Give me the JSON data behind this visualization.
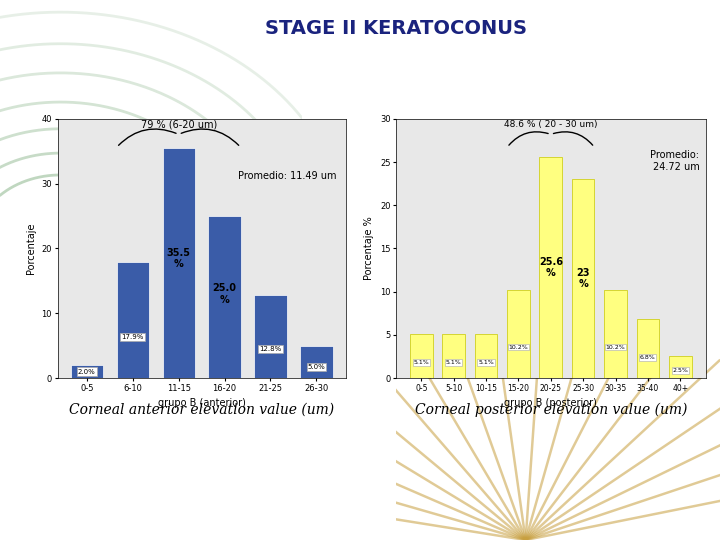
{
  "title": "STAGE II KERATOCONUS",
  "title_color": "#1a237e",
  "title_fontsize": 14,
  "left_chart": {
    "categories": [
      "0-5",
      "6-10",
      "11-15",
      "16-20",
      "21-25",
      "26-30"
    ],
    "values": [
      2.0,
      17.9,
      35.5,
      25.0,
      12.8,
      5.0
    ],
    "bar_color": "#3a5ca8",
    "bar_labels": [
      "2.0%",
      "17.9%",
      "35.5%",
      "25.0%",
      "12.8%",
      "5.0%"
    ],
    "large_labels": [
      null,
      null,
      "35.5\n%",
      "25.0\n%",
      null,
      null
    ],
    "highlight_range": [
      1,
      3
    ],
    "brace_label": "79 % (6-20 um)",
    "promedio_label": "Promedio: 11.49 um",
    "ylabel": "Porcentaje",
    "xlabel": "grupo B (anterior)",
    "bg_color": "#e8e8e8",
    "ylim": [
      0,
      40
    ],
    "yticks": [
      0,
      10,
      20,
      30,
      40
    ]
  },
  "right_chart": {
    "categories": [
      "0-5",
      "5-10",
      "10-15",
      "15-20",
      "20-25",
      "25-30",
      "30-35",
      "35-40",
      "40+"
    ],
    "values": [
      5.1,
      5.1,
      5.1,
      10.2,
      25.6,
      23.0,
      10.2,
      6.8,
      2.5
    ],
    "bar_color": "#ffff80",
    "bar_edge_color": "#c8c800",
    "bar_labels": [
      "5.1%",
      "5.1%",
      "5.1%",
      "10.2%",
      "25.6%",
      "23%",
      "10.2%",
      "6.8%",
      "2.5%"
    ],
    "large_labels": [
      null,
      null,
      null,
      null,
      "25.6\n%",
      "23\n%",
      null,
      null,
      null
    ],
    "highlight_range": [
      3,
      5
    ],
    "brace_label": "48.6 % ( 20 - 30 um)",
    "promedio_label": "Promedio:\n24.72 um",
    "ylabel": "Porcentaje %",
    "xlabel": "grupo B (posterior)",
    "bg_color": "#e8e8e8",
    "ylim": [
      0,
      30
    ],
    "yticks": [
      0,
      5,
      10,
      15,
      20,
      25,
      30
    ]
  },
  "left_caption": "Corneal anterior elevation value (um)",
  "right_caption": "Corneal posterior elevation value (um)",
  "caption_fontsize": 10,
  "fig_bg": "#ffffff",
  "arc_color": "#7aab7a",
  "wheat_color": "#c8a040"
}
